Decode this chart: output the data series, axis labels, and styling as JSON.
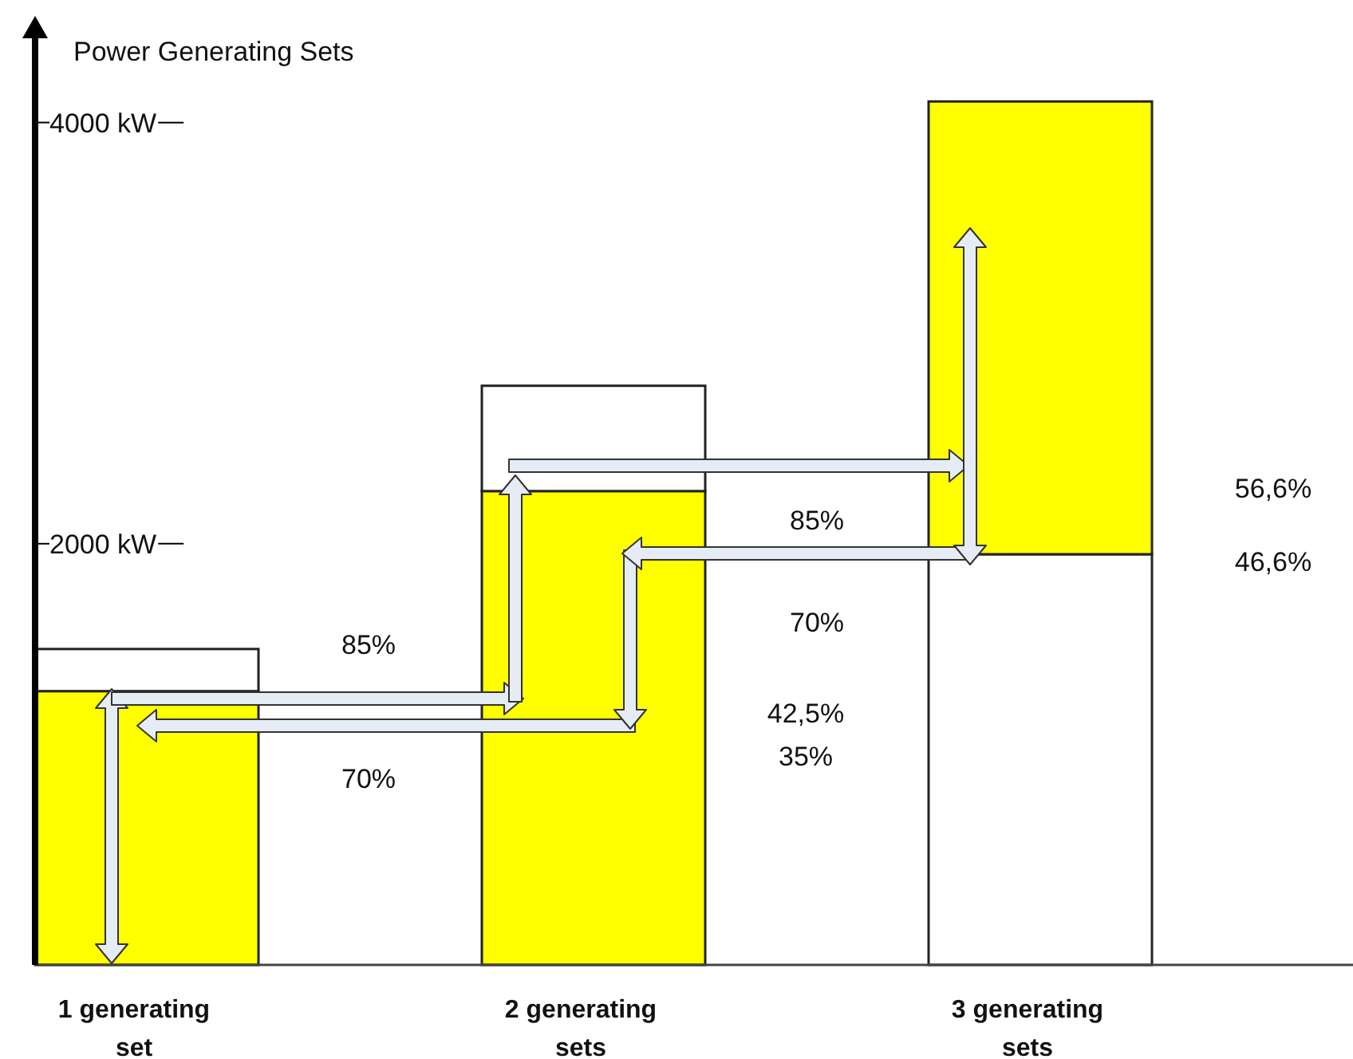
{
  "chart_data": {
    "type": "bar",
    "stacked": true,
    "ylabel": "Power Generating Sets",
    "categories": [
      "1 generating set",
      "2 generating sets",
      "3 generating sets"
    ],
    "series": [
      {
        "color": "#ffff00",
        "values": [
          1300,
          2250,
          null
        ]
      },
      {
        "color": "#ffffff",
        "values": [
          200,
          500,
          1950
        ]
      },
      {
        "color": "#ffff00",
        "values": [
          null,
          null,
          2150
        ]
      }
    ],
    "ylim": [
      0,
      4400
    ],
    "yticks": [
      {
        "value": 2000,
        "label": "2000 kW"
      },
      {
        "value": 4000,
        "label": "4000 kW"
      }
    ],
    "grid": false,
    "annotations": [
      "85%",
      "70%",
      "85%",
      "70%",
      "42,5%",
      "35%",
      "56,6%",
      "46,6%"
    ]
  }
}
